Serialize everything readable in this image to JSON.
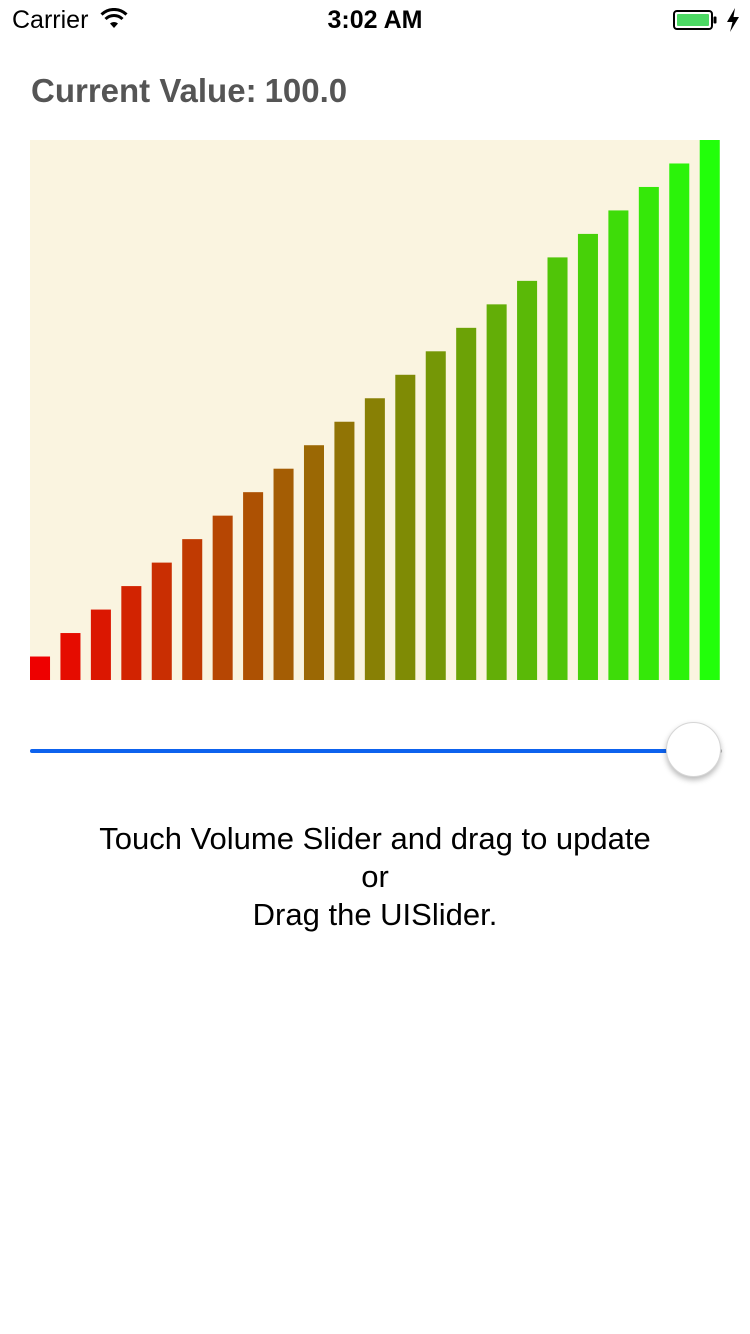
{
  "status_bar": {
    "carrier": "Carrier",
    "time": "3:02 AM",
    "wifi_icon": "wifi-icon",
    "battery_icon": "battery-icon",
    "charging_icon": "charging-bolt-icon",
    "battery_color": "#4cd964"
  },
  "value_label": {
    "prefix": "Current Value:",
    "value": "100.0"
  },
  "slider": {
    "value": 100,
    "min": 0,
    "max": 100,
    "track_color": "#0d62ee",
    "thumb_color": "#ffffff"
  },
  "chart_data": {
    "type": "bar",
    "title": "",
    "xlabel": "",
    "ylabel": "",
    "bar_count": 23,
    "values": [
      1,
      2,
      3,
      4,
      5,
      6,
      7,
      8,
      9,
      10,
      11,
      12,
      13,
      14,
      15,
      16,
      17,
      18,
      19,
      20,
      21,
      22,
      23
    ],
    "ylim": [
      0,
      23
    ],
    "grid": false,
    "background_color": "#faf4e0",
    "color_start": "#ee0000",
    "color_end": "#22ff0a"
  },
  "instructions": {
    "line1": "Touch Volume Slider and drag to update",
    "line2": "or",
    "line3": "Drag the UISlider."
  }
}
